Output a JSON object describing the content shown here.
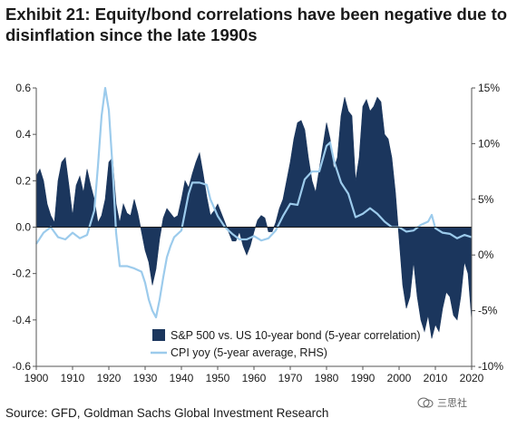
{
  "title": {
    "line1": "Exhibit 21: Equity/bond correlations have been negative due to",
    "line2": "disinflation since the late 1990s"
  },
  "source": "Source: GFD, Goldman Sachs Global Investment Research",
  "watermark": "三思社",
  "colors": {
    "corr": "#1b365d",
    "cpi": "#9ccbec"
  },
  "chart_data": {
    "type": "area",
    "xlim": [
      1900,
      2020
    ],
    "ylim": [
      -0.6,
      0.6
    ],
    "y2lim": [
      -10,
      15
    ],
    "x_ticks": [
      "1900",
      "1910",
      "1920",
      "1930",
      "1940",
      "1950",
      "1960",
      "1970",
      "1980",
      "1990",
      "2000",
      "2010",
      "2020"
    ],
    "y_ticks": [
      "0.6",
      "0.4",
      "0.2",
      "0.0",
      "-0.2",
      "-0.4",
      "-0.6"
    ],
    "y2_ticks": [
      "15%",
      "10%",
      "5%",
      "0%",
      "-5%",
      "-10%"
    ],
    "legend_position": "bottom-center",
    "series": [
      {
        "name": "S&P 500 vs. US 10-year bond (5-year correlation)",
        "axis": "left",
        "style": "filled-area",
        "x": [
          1900,
          1901,
          1902,
          1903,
          1904,
          1905,
          1906,
          1907,
          1908,
          1909,
          1910,
          1911,
          1912,
          1913,
          1914,
          1915,
          1916,
          1917,
          1918,
          1919,
          1920,
          1921,
          1922,
          1923,
          1924,
          1925,
          1926,
          1927,
          1928,
          1929,
          1930,
          1931,
          1932,
          1933,
          1934,
          1935,
          1936,
          1937,
          1938,
          1939,
          1940,
          1941,
          1942,
          1943,
          1944,
          1945,
          1946,
          1947,
          1948,
          1949,
          1950,
          1951,
          1952,
          1953,
          1954,
          1955,
          1956,
          1957,
          1958,
          1959,
          1960,
          1961,
          1962,
          1963,
          1964,
          1965,
          1966,
          1967,
          1968,
          1969,
          1970,
          1971,
          1972,
          1973,
          1974,
          1975,
          1976,
          1977,
          1978,
          1979,
          1980,
          1981,
          1982,
          1983,
          1984,
          1985,
          1986,
          1987,
          1988,
          1989,
          1990,
          1991,
          1992,
          1993,
          1994,
          1995,
          1996,
          1997,
          1998,
          1999,
          2000,
          2001,
          2002,
          2003,
          2004,
          2005,
          2006,
          2007,
          2008,
          2009,
          2010,
          2011,
          2012,
          2013,
          2014,
          2015,
          2016,
          2017,
          2018,
          2019,
          2020
        ],
        "values": [
          0.22,
          0.25,
          0.2,
          0.1,
          0.05,
          0.02,
          0.2,
          0.28,
          0.3,
          0.18,
          0.05,
          0.18,
          0.22,
          0.15,
          0.25,
          0.18,
          0.12,
          0.02,
          0.05,
          0.12,
          0.28,
          0.3,
          0.1,
          0.02,
          0.1,
          0.06,
          0.05,
          0.12,
          0.06,
          -0.02,
          -0.1,
          -0.15,
          -0.25,
          -0.18,
          -0.05,
          0.04,
          0.08,
          0.06,
          0.04,
          0.05,
          0.12,
          0.2,
          0.17,
          0.23,
          0.28,
          0.32,
          0.23,
          0.13,
          0.05,
          0.07,
          0.1,
          0.06,
          0.02,
          -0.02,
          -0.06,
          -0.06,
          -0.02,
          -0.08,
          -0.12,
          -0.08,
          -0.02,
          0.03,
          0.05,
          0.04,
          -0.02,
          -0.02,
          0.02,
          0.08,
          0.12,
          0.2,
          0.28,
          0.38,
          0.45,
          0.46,
          0.42,
          0.3,
          0.2,
          0.15,
          0.25,
          0.35,
          0.45,
          0.38,
          0.25,
          0.3,
          0.48,
          0.56,
          0.5,
          0.48,
          0.2,
          0.3,
          0.52,
          0.55,
          0.5,
          0.52,
          0.56,
          0.54,
          0.4,
          0.38,
          0.3,
          0.15,
          -0.05,
          -0.25,
          -0.35,
          -0.3,
          -0.15,
          -0.3,
          -0.4,
          -0.45,
          -0.38,
          -0.48,
          -0.42,
          -0.45,
          -0.35,
          -0.28,
          -0.3,
          -0.38,
          -0.4,
          -0.3,
          -0.15,
          -0.2,
          -0.4
        ]
      },
      {
        "name": "CPI yoy (5-year average, RHS)",
        "axis": "right",
        "style": "line",
        "x": [
          1900,
          1902,
          1904,
          1906,
          1908,
          1910,
          1912,
          1914,
          1916,
          1917,
          1918,
          1919,
          1920,
          1921,
          1922,
          1923,
          1925,
          1927,
          1929,
          1930,
          1931,
          1932,
          1933,
          1934,
          1935,
          1936,
          1937,
          1938,
          1940,
          1942,
          1943,
          1945,
          1947,
          1948,
          1950,
          1952,
          1954,
          1956,
          1958,
          1960,
          1962,
          1964,
          1966,
          1968,
          1970,
          1972,
          1974,
          1976,
          1978,
          1980,
          1981,
          1982,
          1984,
          1986,
          1988,
          1990,
          1992,
          1994,
          1996,
          1998,
          2000,
          2002,
          2004,
          2006,
          2008,
          2009,
          2010,
          2012,
          2014,
          2016,
          2018,
          2020
        ],
        "values": [
          1.0,
          2.0,
          2.5,
          1.6,
          1.4,
          2.0,
          1.5,
          1.8,
          4.0,
          8.0,
          12.5,
          15.0,
          13.0,
          8.0,
          2.0,
          -1.0,
          -1.0,
          -1.2,
          -1.5,
          -2.5,
          -4.0,
          -5.0,
          -5.6,
          -4.0,
          -2.0,
          -0.2,
          0.8,
          1.6,
          2.2,
          5.5,
          6.5,
          6.5,
          6.3,
          5.0,
          3.5,
          2.5,
          1.9,
          1.4,
          1.4,
          1.7,
          1.3,
          1.5,
          2.2,
          3.5,
          4.6,
          4.5,
          6.8,
          7.5,
          7.5,
          9.8,
          10.1,
          8.5,
          6.5,
          5.5,
          3.4,
          3.7,
          4.2,
          3.7,
          3.0,
          2.5,
          2.5,
          2.1,
          2.2,
          2.7,
          3.0,
          3.6,
          2.4,
          2.0,
          1.9,
          1.5,
          1.8,
          1.6
        ]
      }
    ]
  }
}
